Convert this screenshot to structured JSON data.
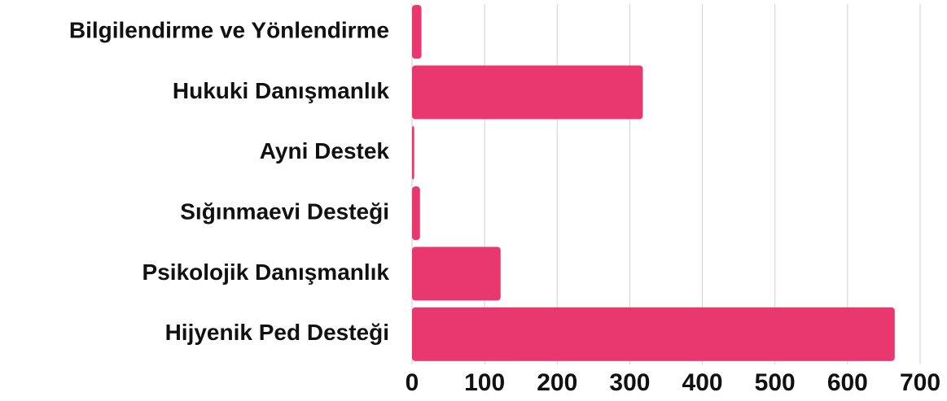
{
  "chart_data": {
    "type": "bar",
    "orientation": "horizontal",
    "categories": [
      "Bilgilendirme ve Yönlendirme",
      "Hukuki Danışmanlık",
      "Ayni Destek",
      "Sığınmaevi Desteği",
      "Psikolojik Danışmanlık",
      "Hijyenik Ped Desteği"
    ],
    "values": [
      13,
      318,
      3,
      11,
      122,
      665
    ],
    "color": "#e8386f",
    "xlim": [
      0,
      700
    ],
    "xticks": [
      0,
      100,
      200,
      300,
      400,
      500,
      600,
      700
    ],
    "grid": true
  }
}
